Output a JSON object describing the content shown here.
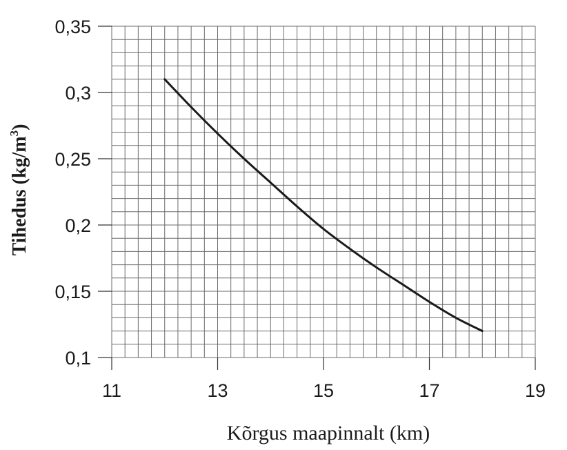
{
  "chart_data": {
    "type": "line",
    "xlabel": "Kõrgus maapinnalt (km)",
    "ylabel_main": "Tihedus (kg/m",
    "ylabel_sup": "3",
    "ylabel_close": ")",
    "xlim": [
      11,
      19
    ],
    "ylim": [
      0.1,
      0.35
    ],
    "x_ticks": [
      11,
      13,
      15,
      17,
      19
    ],
    "x_tick_labels": [
      "11",
      "13",
      "15",
      "17",
      "19"
    ],
    "y_ticks": [
      0.1,
      0.15,
      0.2,
      0.25,
      0.3,
      0.35
    ],
    "y_tick_labels": [
      "0,1",
      "0,15",
      "0,2",
      "0,25",
      "0,3",
      "0,35"
    ],
    "grid": true,
    "grid_minor_x_step": 0.25,
    "grid_minor_y_step": 0.01,
    "series": [
      {
        "color": "#1a1a1a",
        "x": [
          12,
          12.5,
          13,
          13.5,
          14,
          14.5,
          15,
          15.5,
          16,
          16.5,
          17,
          17.5,
          18
        ],
        "y": [
          0.31,
          0.289,
          0.269,
          0.25,
          0.232,
          0.214,
          0.197,
          0.182,
          0.168,
          0.155,
          0.142,
          0.13,
          0.12
        ]
      }
    ]
  }
}
